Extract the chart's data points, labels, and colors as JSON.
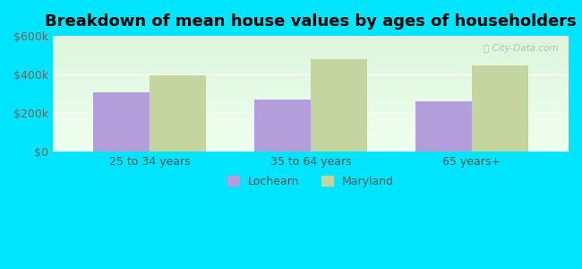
{
  "title": "Breakdown of mean house values by ages of householders",
  "categories": [
    "25 to 34 years",
    "35 to 64 years",
    "65 years+"
  ],
  "lochearn_values": [
    305000,
    270000,
    260000
  ],
  "maryland_values": [
    395000,
    480000,
    445000
  ],
  "lochearn_color": "#b39ddb",
  "maryland_color": "#c5d5a0",
  "background_color": "#00e5ff",
  "ylim": [
    0,
    600000
  ],
  "yticks": [
    0,
    200000,
    400000,
    600000
  ],
  "ytick_labels": [
    "$0",
    "$200k",
    "$400k",
    "$600k"
  ],
  "legend_labels": [
    "Lochearn",
    "Maryland"
  ],
  "bar_width": 0.35,
  "title_fontsize": 13,
  "tick_fontsize": 9,
  "legend_fontsize": 9
}
